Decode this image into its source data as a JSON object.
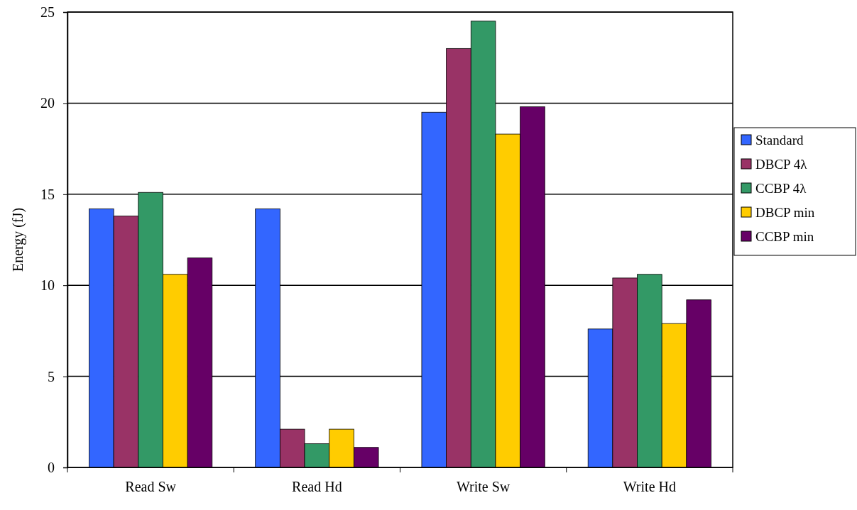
{
  "chart_data": {
    "type": "bar",
    "ylabel": "Energy (fJ)",
    "categories": [
      "Read Sw",
      "Read Hd",
      "Write Sw",
      "Write Hd"
    ],
    "series": [
      {
        "name": "Standard",
        "color": "#3366ff",
        "values": [
          14.2,
          14.2,
          19.5,
          7.6
        ]
      },
      {
        "name": "DBCP 4λ",
        "color": "#993366",
        "values": [
          13.8,
          2.1,
          23.0,
          10.4
        ]
      },
      {
        "name": "CCBP 4λ",
        "color": "#339966",
        "values": [
          15.1,
          1.3,
          24.5,
          10.6
        ]
      },
      {
        "name": "DBCP min",
        "color": "#ffcc00",
        "values": [
          10.6,
          2.1,
          18.3,
          7.9
        ]
      },
      {
        "name": "CCBP min",
        "color": "#660066",
        "values": [
          11.5,
          1.1,
          19.8,
          9.2
        ]
      }
    ],
    "ylim": [
      0,
      25
    ],
    "yticks": [
      0,
      5,
      10,
      15,
      20,
      25
    ],
    "grid": "y",
    "legend": "right"
  }
}
